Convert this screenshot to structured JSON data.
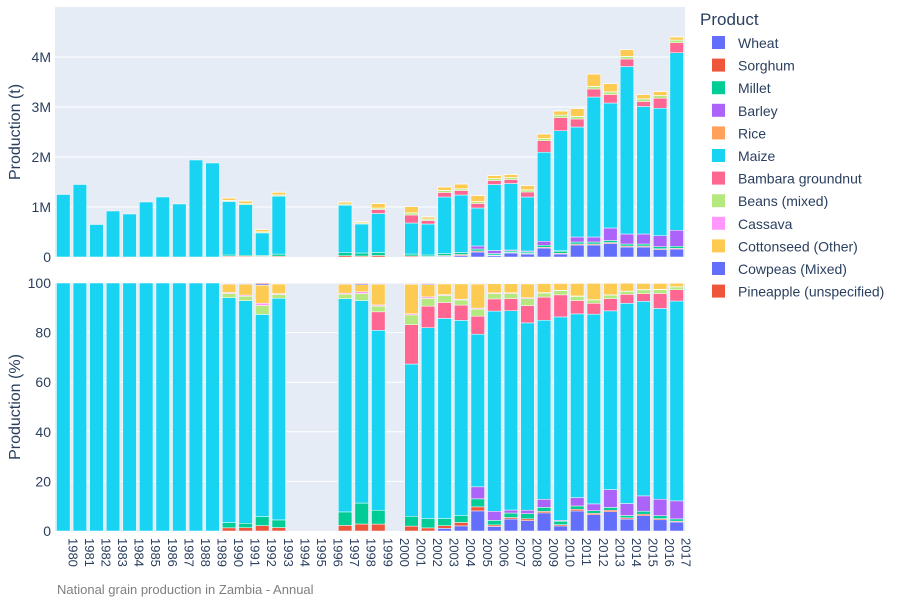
{
  "chart_data": {
    "type": "bar",
    "stacked": true,
    "caption": "National grain production in Zambia - Annual",
    "legend": {
      "title": "Product",
      "placement": "right",
      "items": [
        {
          "name": "Wheat",
          "color": "#636efa"
        },
        {
          "name": "Sorghum",
          "color": "#EF553B"
        },
        {
          "name": "Millet",
          "color": "#00cc96"
        },
        {
          "name": "Barley",
          "color": "#ab63fa"
        },
        {
          "name": "Rice",
          "color": "#FFA15A"
        },
        {
          "name": "Maize",
          "color": "#19d3f3"
        },
        {
          "name": "Bambara groundnut",
          "color": "#FF6692"
        },
        {
          "name": "Beans (mixed)",
          "color": "#B6E880"
        },
        {
          "name": "Cassava",
          "color": "#FF97FF"
        },
        {
          "name": "Cottonseed (Other)",
          "color": "#FECB52"
        },
        {
          "name": "Cowpeas (Mixed)",
          "color": "#636efa"
        },
        {
          "name": "Pineapple (unspecified)",
          "color": "#EF553B"
        }
      ]
    },
    "categories": [
      "1980",
      "1981",
      "1982",
      "1983",
      "1984",
      "1985",
      "1986",
      "1987",
      "1988",
      "1989",
      "1990",
      "1991",
      "1992",
      "1993",
      "1994",
      "1995",
      "1996",
      "1997",
      "1998",
      "1999",
      "2000",
      "2001",
      "2002",
      "2003",
      "2004",
      "2005",
      "2006",
      "2007",
      "2008",
      "2009",
      "2010",
      "2011",
      "2012",
      "2013",
      "2014",
      "2015",
      "2016",
      "2017"
    ],
    "top_panel": {
      "ylabel": "Production (t)",
      "ylim": [
        0,
        5000000
      ],
      "ytick_values": [
        0,
        1000000,
        2000000,
        3000000,
        4000000
      ],
      "ytick_labels": [
        "0",
        "1M",
        "2M",
        "3M",
        "4M"
      ],
      "grid": true,
      "series": [
        {
          "name": "Wheat",
          "values": [
            0,
            0,
            0,
            0,
            0,
            0,
            0,
            0,
            0,
            0,
            0,
            0,
            0,
            0,
            0,
            0,
            0,
            0,
            0,
            0,
            0,
            0,
            0,
            15000,
            30000,
            100000,
            30000,
            80000,
            60000,
            180000,
            60000,
            240000,
            240000,
            270000,
            200000,
            200000,
            150000,
            160000
          ]
        },
        {
          "name": "Sorghum",
          "values": [
            0,
            0,
            0,
            0,
            0,
            0,
            0,
            0,
            0,
            0,
            15000,
            15000,
            12000,
            18000,
            0,
            0,
            0,
            25000,
            20000,
            30000,
            0,
            20000,
            10000,
            15000,
            20000,
            20000,
            10000,
            10000,
            10000,
            15000,
            15000,
            20000,
            20000,
            20000,
            20000,
            20000,
            15000,
            15000
          ]
        },
        {
          "name": "Millet",
          "values": [
            0,
            0,
            0,
            0,
            0,
            0,
            0,
            0,
            0,
            0,
            25000,
            20000,
            20000,
            40000,
            0,
            0,
            0,
            60000,
            60000,
            60000,
            0,
            40000,
            30000,
            40000,
            40000,
            40000,
            30000,
            30000,
            30000,
            40000,
            40000,
            40000,
            40000,
            40000,
            40000,
            40000,
            40000,
            40000
          ]
        },
        {
          "name": "Barley",
          "values": [
            0,
            0,
            0,
            0,
            0,
            0,
            0,
            0,
            0,
            0,
            0,
            0,
            0,
            0,
            0,
            0,
            0,
            0,
            0,
            0,
            0,
            0,
            0,
            0,
            0,
            60000,
            60000,
            20000,
            20000,
            80000,
            10000,
            100000,
            100000,
            250000,
            200000,
            200000,
            220000,
            320000
          ]
        },
        {
          "name": "Rice",
          "values": [
            0,
            0,
            0,
            0,
            0,
            0,
            0,
            0,
            0,
            0,
            0,
            0,
            0,
            0,
            0,
            0,
            0,
            0,
            0,
            0,
            0,
            0,
            0,
            0,
            0,
            0,
            0,
            0,
            0,
            0,
            0,
            0,
            0,
            0,
            0,
            0,
            0,
            0
          ]
        },
        {
          "name": "Maize",
          "values": [
            1250000,
            1450000,
            650000,
            920000,
            860000,
            1100000,
            1200000,
            1060000,
            1940000,
            1880000,
            1070000,
            1010000,
            450000,
            1160000,
            0,
            0,
            0,
            950000,
            580000,
            780000,
            0,
            620000,
            620000,
            1130000,
            1150000,
            760000,
            1320000,
            1330000,
            1080000,
            1780000,
            2400000,
            2200000,
            2800000,
            2500000,
            3350000,
            2550000,
            2550000,
            3550000
          ]
        },
        {
          "name": "Bambara groundnut",
          "values": [
            0,
            0,
            0,
            0,
            0,
            0,
            0,
            0,
            0,
            0,
            0,
            0,
            0,
            0,
            0,
            0,
            0,
            0,
            0,
            80000,
            0,
            160000,
            70000,
            90000,
            90000,
            90000,
            80000,
            80000,
            100000,
            230000,
            260000,
            160000,
            160000,
            170000,
            150000,
            100000,
            200000,
            200000
          ]
        },
        {
          "name": "Beans (mixed)",
          "values": [
            0,
            0,
            0,
            0,
            0,
            0,
            0,
            0,
            0,
            0,
            20000,
            20000,
            20000,
            20000,
            0,
            0,
            0,
            20000,
            20000,
            25000,
            0,
            40000,
            25000,
            40000,
            30000,
            35000,
            35000,
            35000,
            40000,
            40000,
            50000,
            50000,
            50000,
            50000,
            50000,
            50000,
            50000,
            50000
          ]
        },
        {
          "name": "Cassava",
          "values": [
            0,
            0,
            0,
            0,
            0,
            0,
            0,
            0,
            0,
            0,
            5000,
            5000,
            5000,
            5000,
            0,
            0,
            0,
            5000,
            5000,
            5000,
            0,
            5000,
            5000,
            5000,
            5000,
            5000,
            5000,
            5000,
            5000,
            5000,
            5000,
            5000,
            5000,
            5000,
            5000,
            5000,
            5000,
            5000
          ]
        },
        {
          "name": "Cottonseed (Other)",
          "values": [
            0,
            0,
            0,
            0,
            0,
            0,
            0,
            0,
            0,
            0,
            40000,
            50000,
            40000,
            50000,
            0,
            0,
            0,
            40000,
            20000,
            90000,
            0,
            120000,
            40000,
            60000,
            90000,
            120000,
            60000,
            60000,
            80000,
            90000,
            80000,
            150000,
            240000,
            160000,
            130000,
            80000,
            80000,
            60000
          ]
        },
        {
          "name": "Cowpeas (Mixed)",
          "values": [
            0,
            0,
            0,
            0,
            0,
            0,
            0,
            0,
            0,
            0,
            3000,
            3000,
            3000,
            3000,
            0,
            0,
            0,
            3000,
            3000,
            3000,
            0,
            3000,
            3000,
            3000,
            3000,
            3000,
            3000,
            3000,
            3000,
            3000,
            3000,
            3000,
            3000,
            3000,
            3000,
            3000,
            3000,
            3000
          ]
        },
        {
          "name": "Pineapple (unspecified)",
          "values": [
            0,
            0,
            0,
            0,
            0,
            0,
            0,
            0,
            0,
            0,
            2000,
            2000,
            2000,
            2000,
            0,
            0,
            0,
            2000,
            2000,
            2000,
            0,
            2000,
            2000,
            2000,
            2000,
            2000,
            2000,
            2000,
            2000,
            2000,
            2000,
            2000,
            2000,
            2000,
            2000,
            2000,
            2000,
            2000
          ]
        }
      ]
    },
    "bottom_panel": {
      "ylabel": "Production (%)",
      "ylim": [
        0,
        100
      ],
      "ytick_values": [
        0,
        20,
        40,
        60,
        80,
        100
      ],
      "ytick_labels": [
        "0",
        "20",
        "40",
        "60",
        "80",
        "100"
      ],
      "grid": true,
      "normalized_from": "top_panel"
    }
  }
}
